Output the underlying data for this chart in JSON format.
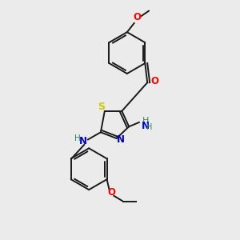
{
  "bg_color": "#ebebeb",
  "bond_color": "#1a1a1a",
  "figure_size": [
    3.0,
    3.0
  ],
  "dpi": 100,
  "atom_colors": {
    "O": "#ff0000",
    "N": "#0000cd",
    "S": "#cccc00",
    "H": "#2e8b57",
    "C": "#1a1a1a"
  },
  "font_size_atoms": 8.5,
  "font_size_small": 7.0,
  "lw": 1.4
}
